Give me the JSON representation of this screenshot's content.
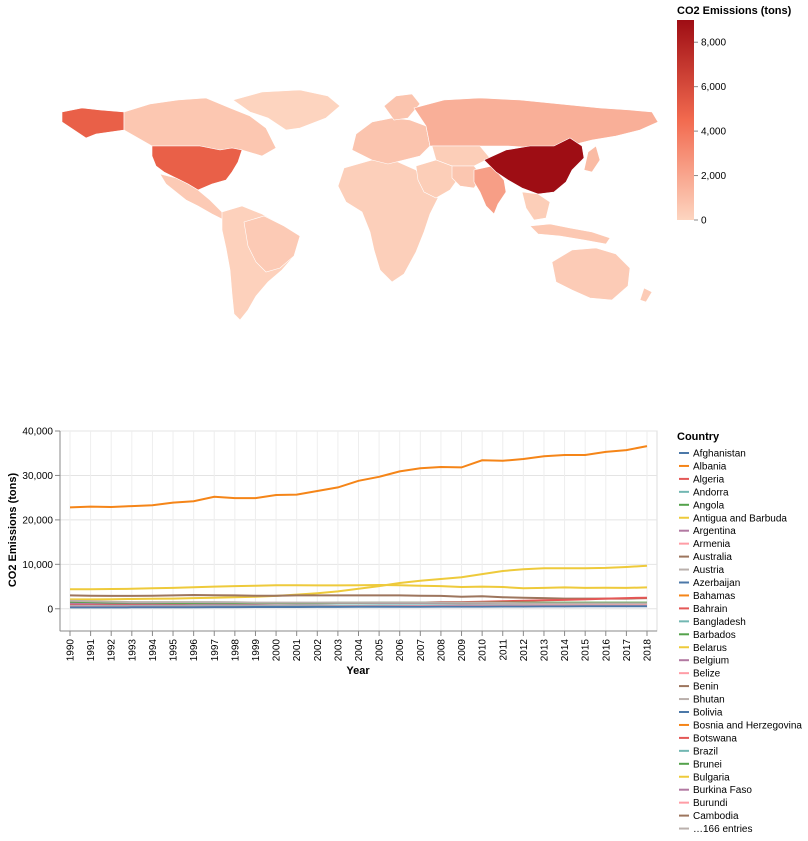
{
  "chart_data": [
    {
      "type": "choropleth",
      "color_legend": {
        "title": "CO2 Emissions (tons)",
        "ticks": [
          "8,000",
          "6,000",
          "4,000",
          "2,000",
          "0"
        ],
        "domain": [
          0,
          9000
        ],
        "colors": [
          "#fdd5c0",
          "#f26a4f",
          "#9e0d14"
        ]
      },
      "regions": [
        {
          "name": "China",
          "value": 9000
        },
        {
          "name": "United States",
          "value": 5000
        },
        {
          "name": "India",
          "value": 2300
        },
        {
          "name": "Russia",
          "value": 1600
        },
        {
          "name": "Japan",
          "value": 1100
        },
        {
          "name": "Canada",
          "value": 600
        },
        {
          "name": "Brazil",
          "value": 450
        },
        {
          "name": "Australia",
          "value": 400
        },
        {
          "name": "Indonesia",
          "value": 550
        },
        {
          "name": "Mexico",
          "value": 450
        },
        {
          "name": "Kazakhstan",
          "value": 300
        },
        {
          "name": "Iran",
          "value": 650
        },
        {
          "name": "Saudi Arabia",
          "value": 550
        },
        {
          "name": "Europe",
          "value": 700
        },
        {
          "name": "Africa",
          "value": 250
        },
        {
          "name": "South America",
          "value": 150
        },
        {
          "name": "Middle East",
          "value": 300
        },
        {
          "name": "Southeast Asia",
          "value": 300
        },
        {
          "name": "Greenland",
          "value": 50
        }
      ]
    },
    {
      "type": "line",
      "xlabel": "Year",
      "ylabel": "CO2 Emissions (tons)",
      "ylim": [
        -5000,
        40000
      ],
      "y_ticks": [
        "40,000",
        "30,000",
        "20,000",
        "10,000",
        "0"
      ],
      "y_tick_values": [
        40000,
        30000,
        20000,
        10000,
        0
      ],
      "x": [
        1990,
        1991,
        1992,
        1993,
        1994,
        1995,
        1996,
        1997,
        1998,
        1999,
        2000,
        2001,
        2002,
        2003,
        2004,
        2005,
        2006,
        2007,
        2008,
        2009,
        2010,
        2011,
        2012,
        2013,
        2014,
        2015,
        2016,
        2017,
        2018
      ],
      "x_labels": [
        "1990",
        "1991",
        "1992",
        "1993",
        "1994",
        "1995",
        "1996",
        "1997",
        "1998",
        "1999",
        "2000",
        "2001",
        "2002",
        "2003",
        "2004",
        "2005",
        "2006",
        "2007",
        "2008",
        "2009",
        "2010",
        "2011",
        "2012",
        "2013",
        "2014",
        "2015",
        "2016",
        "2017",
        "2018"
      ],
      "series": [
        {
          "color": "#f58518",
          "values": [
            22800,
            23000,
            22900,
            23100,
            23300,
            23900,
            24200,
            25200,
            24900,
            24900,
            25600,
            25700,
            26500,
            27300,
            28800,
            29700,
            30900,
            31600,
            31900,
            31800,
            33400,
            33300,
            33700,
            34300,
            34600,
            34600,
            35300,
            35700,
            36600
          ]
        },
        {
          "color": "#eeca3b",
          "values": [
            2100,
            2100,
            2150,
            2200,
            2250,
            2300,
            2400,
            2500,
            2600,
            2700,
            2900,
            3200,
            3500,
            3900,
            4500,
            5100,
            5800,
            6300,
            6700,
            7100,
            7800,
            8500,
            8900,
            9100,
            9100,
            9100,
            9200,
            9400,
            9700
          ]
        },
        {
          "color": "#eeca3b",
          "values": [
            4400,
            4400,
            4450,
            4500,
            4600,
            4700,
            4850,
            5000,
            5100,
            5200,
            5300,
            5300,
            5250,
            5250,
            5300,
            5350,
            5300,
            5200,
            5100,
            4900,
            5000,
            4900,
            4600,
            4700,
            4800,
            4700,
            4750,
            4700,
            4800
          ]
        },
        {
          "color": "#9d755d",
          "values": [
            3000,
            2950,
            2900,
            2900,
            2950,
            3000,
            3100,
            3050,
            3000,
            2950,
            2950,
            3000,
            3000,
            3000,
            3000,
            3000,
            3000,
            2950,
            2900,
            2700,
            2800,
            2600,
            2500,
            2400,
            2300,
            2300,
            2300,
            2300,
            2400
          ]
        },
        {
          "color": "#e45756",
          "values": [
            1000,
            1050,
            1050,
            1050,
            1050,
            1050,
            1100,
            1100,
            1100,
            1100,
            1200,
            1200,
            1250,
            1300,
            1300,
            1350,
            1400,
            1400,
            1500,
            1500,
            1600,
            1700,
            1800,
            1900,
            2000,
            2100,
            2300,
            2400,
            2500
          ]
        },
        {
          "color": "#b279a2",
          "values": [
            1200,
            1200,
            1200,
            1200,
            1200,
            1200,
            1200,
            1200,
            1200,
            1200,
            1250,
            1250,
            1250,
            1300,
            1300,
            1300,
            1300,
            1300,
            1300,
            1200,
            1250,
            1250,
            1250,
            1250,
            1250,
            1250,
            1250,
            1300,
            1300
          ]
        },
        {
          "color": "#54a24b",
          "values": [
            1600,
            1500,
            1400,
            1400,
            1350,
            1300,
            1300,
            1350,
            1300,
            1300,
            1300,
            1300,
            1300,
            1350,
            1350,
            1400,
            1400,
            1400,
            1400,
            1350,
            1400,
            1400,
            1400,
            1400,
            1400,
            1400,
            1400,
            1400,
            1400
          ]
        },
        {
          "color": "#72b7b2",
          "values": [
            600,
            610,
            620,
            630,
            640,
            650,
            660,
            670,
            680,
            690,
            700,
            710,
            720,
            730,
            740,
            750,
            760,
            770,
            780,
            790,
            800,
            810,
            820,
            830,
            840,
            850,
            860,
            870,
            880
          ]
        },
        {
          "color": "#ff9da6",
          "values": [
            500,
            500,
            500,
            500,
            500,
            500,
            500,
            500,
            500,
            500,
            500,
            500,
            520,
            540,
            560,
            580,
            600,
            620,
            640,
            660,
            680,
            700,
            720,
            740,
            760,
            780,
            800,
            820,
            840
          ]
        },
        {
          "color": "#4c78a8",
          "values": [
            300,
            310,
            320,
            330,
            340,
            350,
            360,
            370,
            380,
            390,
            400,
            410,
            420,
            430,
            440,
            450,
            460,
            470,
            480,
            490,
            500,
            510,
            520,
            530,
            540,
            550,
            560,
            570,
            580
          ]
        },
        {
          "color": "#bab0ac",
          "values": [
            1800,
            1700,
            1600,
            1500,
            1500,
            1500,
            1500,
            1500,
            1450,
            1400,
            1400,
            1400,
            1400,
            1400,
            1400,
            1400,
            1400,
            1400,
            1400,
            1350,
            1350,
            1300,
            1250,
            1200,
            1200,
            1200,
            1200,
            1200,
            1200
          ]
        }
      ],
      "legend": {
        "title": "Country",
        "placement": "right",
        "entries": [
          {
            "label": "Afghanistan",
            "color": "#4c78a8"
          },
          {
            "label": "Albania",
            "color": "#f58518"
          },
          {
            "label": "Algeria",
            "color": "#e45756"
          },
          {
            "label": "Andorra",
            "color": "#72b7b2"
          },
          {
            "label": "Angola",
            "color": "#54a24b"
          },
          {
            "label": "Antigua and Barbuda",
            "color": "#eeca3b"
          },
          {
            "label": "Argentina",
            "color": "#b279a2"
          },
          {
            "label": "Armenia",
            "color": "#ff9da6"
          },
          {
            "label": "Australia",
            "color": "#9d755d"
          },
          {
            "label": "Austria",
            "color": "#bab0ac"
          },
          {
            "label": "Azerbaijan",
            "color": "#4c78a8"
          },
          {
            "label": "Bahamas",
            "color": "#f58518"
          },
          {
            "label": "Bahrain",
            "color": "#e45756"
          },
          {
            "label": "Bangladesh",
            "color": "#72b7b2"
          },
          {
            "label": "Barbados",
            "color": "#54a24b"
          },
          {
            "label": "Belarus",
            "color": "#eeca3b"
          },
          {
            "label": "Belgium",
            "color": "#b279a2"
          },
          {
            "label": "Belize",
            "color": "#ff9da6"
          },
          {
            "label": "Benin",
            "color": "#9d755d"
          },
          {
            "label": "Bhutan",
            "color": "#bab0ac"
          },
          {
            "label": "Bolivia",
            "color": "#4c78a8"
          },
          {
            "label": "Bosnia and Herzegovina",
            "color": "#f58518"
          },
          {
            "label": "Botswana",
            "color": "#e45756"
          },
          {
            "label": "Brazil",
            "color": "#72b7b2"
          },
          {
            "label": "Brunei",
            "color": "#54a24b"
          },
          {
            "label": "Bulgaria",
            "color": "#eeca3b"
          },
          {
            "label": "Burkina Faso",
            "color": "#b279a2"
          },
          {
            "label": "Burundi",
            "color": "#ff9da6"
          },
          {
            "label": "Cambodia",
            "color": "#9d755d"
          },
          {
            "label": "…166 entries",
            "color": "#bab0ac"
          }
        ]
      }
    }
  ]
}
